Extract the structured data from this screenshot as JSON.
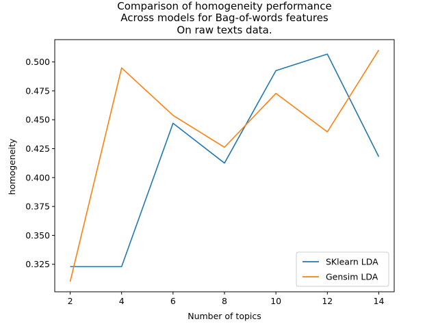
{
  "chart_data": {
    "type": "line",
    "title": [
      "Comparison of homogeneity performance",
      "Across models for Bag-of-words features",
      "On raw texts data."
    ],
    "xlabel": "Number of topics",
    "ylabel": "homogeneity",
    "x": [
      2,
      4,
      6,
      8,
      10,
      12,
      14
    ],
    "xticks": [
      "2",
      "4",
      "6",
      "8",
      "10",
      "12",
      "14"
    ],
    "yticks": [
      "0.325",
      "0.350",
      "0.375",
      "0.400",
      "0.425",
      "0.450",
      "0.475",
      "0.500"
    ],
    "xlim": [
      1.4,
      14.6
    ],
    "ylim": [
      0.3012,
      0.5193
    ],
    "grid": false,
    "legend_position": "lower-right",
    "series": [
      {
        "name": "SKlearn LDA",
        "color": "#1f77b4",
        "values": [
          0.323,
          0.323,
          0.447,
          0.4125,
          0.4925,
          0.5068,
          0.418
        ]
      },
      {
        "name": "Gensim LDA",
        "color": "#ff7f0e",
        "values": [
          0.31,
          0.4948,
          0.4538,
          0.4262,
          0.4728,
          0.4395,
          0.5103
        ]
      }
    ]
  }
}
